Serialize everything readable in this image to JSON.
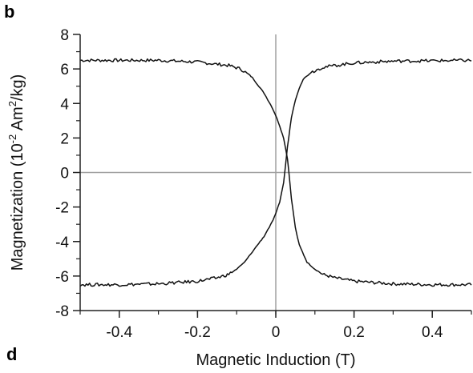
{
  "panel_labels": {
    "top": "b",
    "bottom": "d"
  },
  "chart_data": {
    "type": "line",
    "xlabel": "Magnetic Induction (T)",
    "ylabel_prefix": "Magnetization (10",
    "ylabel_exp1": "-2",
    "ylabel_mid": " Am",
    "ylabel_exp2": "2",
    "ylabel_suffix": "/kg)",
    "xlim": [
      -0.5,
      0.5
    ],
    "ylim": [
      -8,
      8
    ],
    "x_ticks": [
      -0.4,
      -0.2,
      0,
      0.2,
      0.4
    ],
    "x_tick_labels": [
      "-0.4",
      "-0.2",
      "0",
      "0.2",
      "0.4"
    ],
    "y_ticks": [
      -8,
      -6,
      -4,
      -2,
      0,
      2,
      4,
      6,
      8
    ],
    "y_tick_labels": [
      "-8",
      "-6",
      "-4",
      "-2",
      "0",
      "2",
      "4",
      "6",
      "8"
    ],
    "reference_lines": {
      "x0": true,
      "y0": true,
      "color": "#a0a0a0"
    },
    "series": [
      {
        "line_color": "#111111",
        "x": [
          -0.5,
          -0.3,
          -0.2,
          -0.12,
          -0.09,
          -0.07,
          -0.06,
          -0.05,
          -0.04,
          -0.03,
          -0.02,
          -0.01,
          0.0,
          0.01,
          0.02,
          0.03,
          0.04,
          0.05,
          0.06,
          0.08,
          0.1,
          0.12,
          0.15,
          0.2,
          0.3,
          0.4,
          0.5
        ],
        "y": [
          6.5,
          6.5,
          6.4,
          6.2,
          6.0,
          5.7,
          5.5,
          5.2,
          4.9,
          4.6,
          4.2,
          3.8,
          3.3,
          2.7,
          2.0,
          0.8,
          -1.5,
          -3.2,
          -4.2,
          -5.2,
          -5.6,
          -5.9,
          -6.1,
          -6.3,
          -6.45,
          -6.5,
          -6.5
        ]
      },
      {
        "line_color": "#111111",
        "x": [
          -0.5,
          -0.4,
          -0.3,
          -0.2,
          -0.15,
          -0.12,
          -0.1,
          -0.08,
          -0.06,
          -0.05,
          -0.04,
          -0.03,
          -0.02,
          -0.01,
          0.0,
          0.01,
          0.02,
          0.03,
          0.04,
          0.05,
          0.06,
          0.07,
          0.09,
          0.12,
          0.2,
          0.3,
          0.5
        ],
        "y": [
          -6.5,
          -6.5,
          -6.45,
          -6.3,
          -6.1,
          -5.9,
          -5.6,
          -5.2,
          -4.6,
          -4.3,
          -4.0,
          -3.7,
          -3.3,
          -2.9,
          -2.4,
          -1.7,
          -0.6,
          1.5,
          3.2,
          4.2,
          4.9,
          5.4,
          5.8,
          6.1,
          6.35,
          6.45,
          6.5
        ]
      }
    ]
  }
}
